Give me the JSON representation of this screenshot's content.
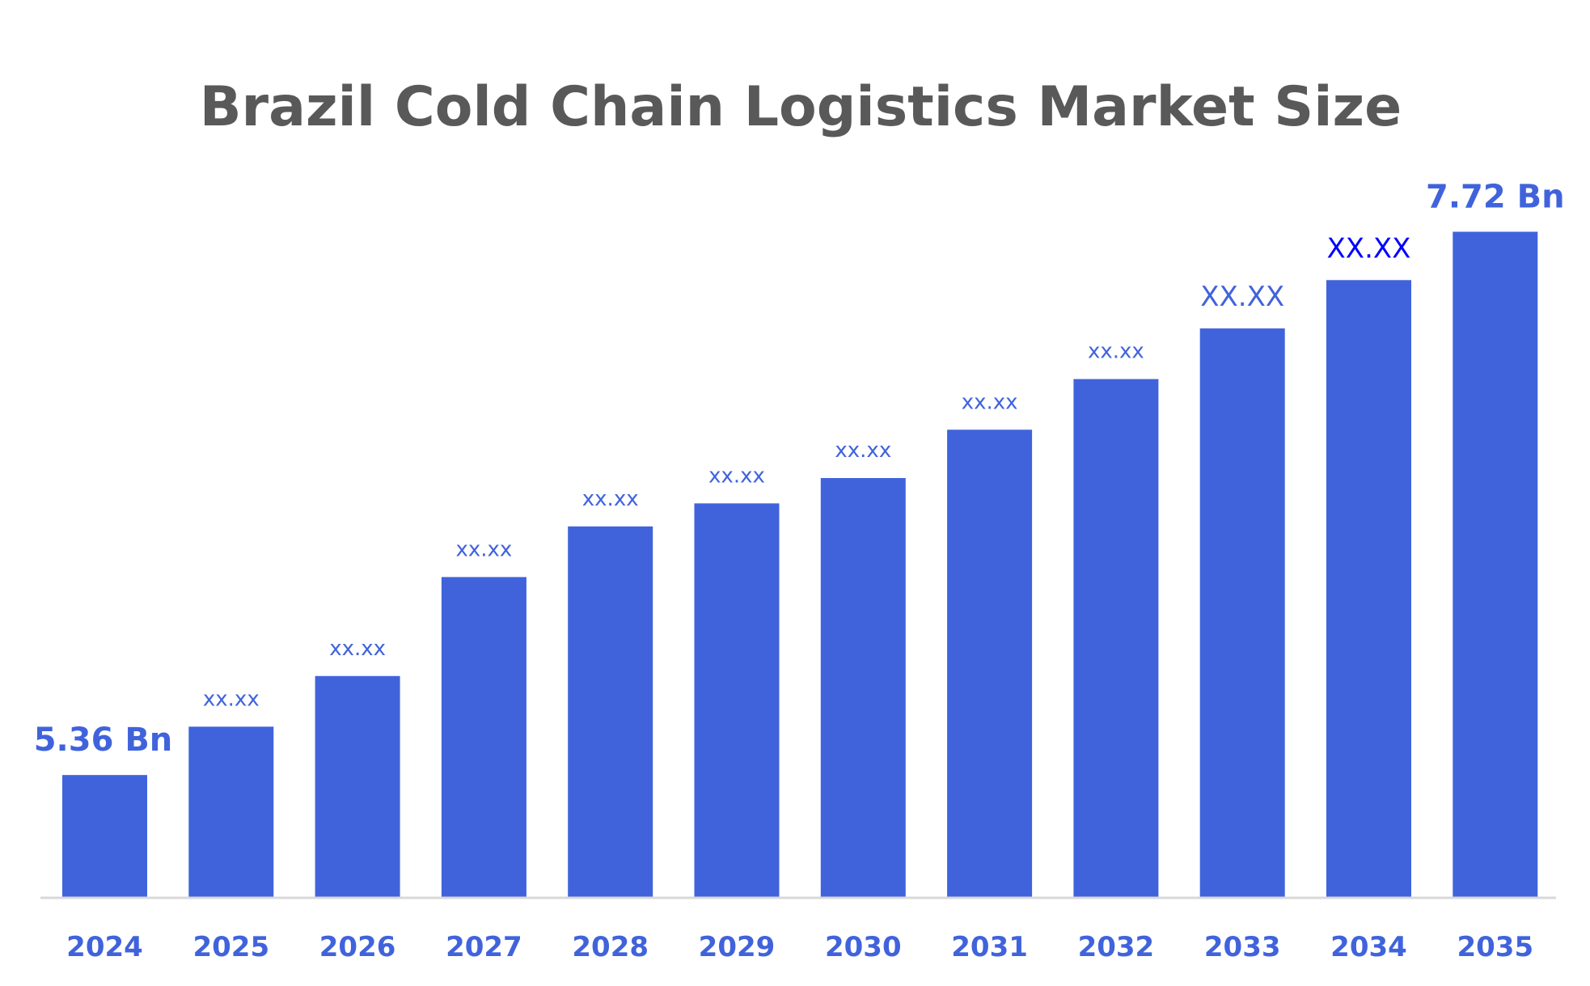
{
  "chart_data": {
    "type": "bar",
    "title": "Brazil Cold Chain Logistics Market Size",
    "xlabel": "",
    "ylabel": "",
    "categories": [
      "2024",
      "2025",
      "2026",
      "2027",
      "2028",
      "2029",
      "2030",
      "2031",
      "2032",
      "2033",
      "2034",
      "2035"
    ],
    "values": [
      5.36,
      5.57,
      5.79,
      6.22,
      6.44,
      6.54,
      6.65,
      6.86,
      7.08,
      7.3,
      7.51,
      7.72
    ],
    "data_labels": [
      "5.36 Bn",
      "xx.xx",
      "xx.xx",
      "xx.xx",
      "xx.xx",
      "xx.xx",
      "xx.xx",
      "xx.xx",
      "xx.xx",
      "XX.XX",
      "XX.XX",
      "7.72 Bn"
    ],
    "label_colors": [
      "#4063dc",
      "#4063dc",
      "#4063dc",
      "#4063dc",
      "#4063dc",
      "#4063dc",
      "#4063dc",
      "#4063dc",
      "#4063dc",
      "#4063dc",
      "#0000ff",
      "#4063dc"
    ],
    "ylim": [
      4.83,
      7.9
    ],
    "grid": false,
    "legend": "none",
    "y_axis_visible": false,
    "colors": {
      "bar": "#4063dc",
      "axis": "#d9d9d9",
      "title": "#595959",
      "tick_label": "#4063dc"
    }
  }
}
